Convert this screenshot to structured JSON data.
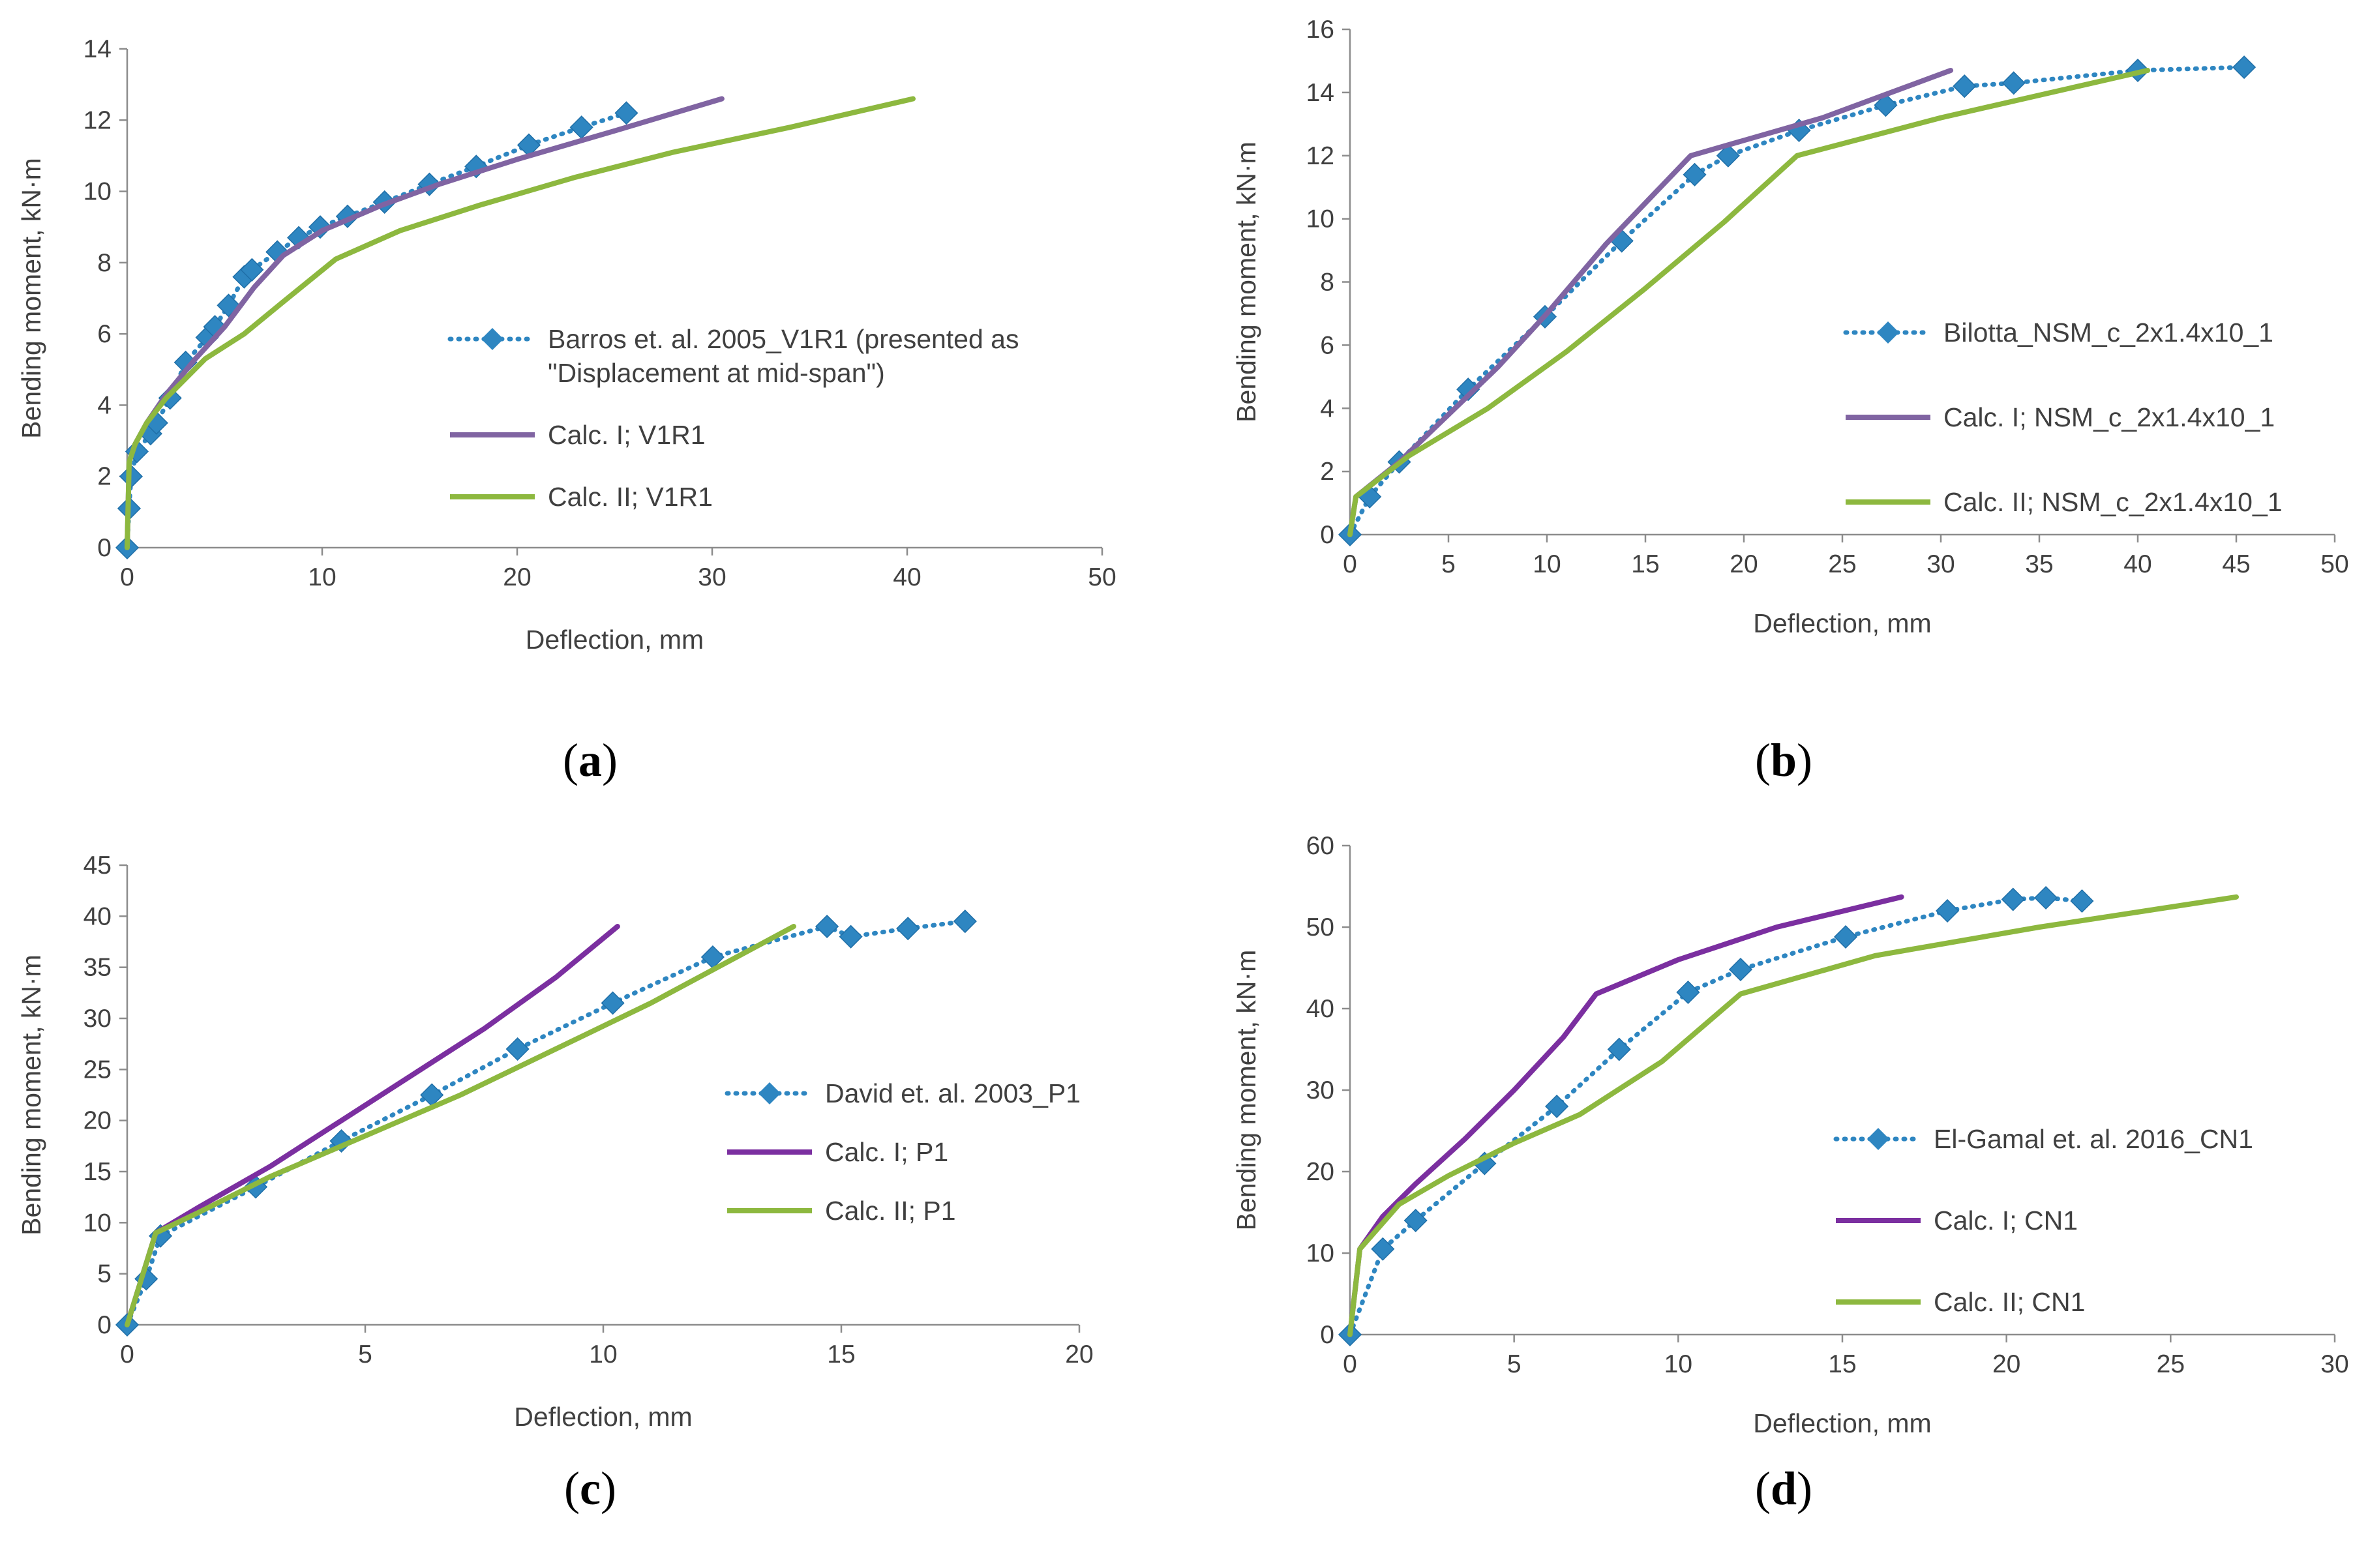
{
  "chart_data": [
    {
      "type": "line",
      "panel_label": "(a)",
      "label_letter": "a",
      "xlabel": "Deflection, mm",
      "ylabel": "Bending moment, kN·m",
      "xlim": [
        0,
        50
      ],
      "ylim": [
        0,
        14
      ],
      "xticks": [
        0,
        10,
        20,
        30,
        40,
        50
      ],
      "yticks": [
        0,
        2,
        4,
        6,
        8,
        10,
        12,
        14
      ],
      "legend_position": "center-right",
      "series": [
        {
          "name": "Barros et. al. 2005_V1R1 (presented as \"Displacement at mid-span\")",
          "legend_lines": [
            "Barros et. al. 2005_V1R1 (presented as",
            "\"Displacement at mid-span\")"
          ],
          "style": "dotted-diamond",
          "color": "#2E86C1",
          "x": [
            0,
            0.1,
            0.2,
            0.5,
            1.2,
            1.5,
            2.2,
            3.0,
            4.1,
            4.5,
            5.2,
            6.0,
            6.4,
            7.7,
            8.8,
            9.9,
            11.3,
            13.2,
            15.5,
            17.9,
            20.6,
            23.3,
            25.6
          ],
          "y": [
            0,
            1.1,
            2.0,
            2.7,
            3.2,
            3.5,
            4.2,
            5.2,
            5.9,
            6.2,
            6.8,
            7.6,
            7.8,
            8.3,
            8.7,
            9.0,
            9.3,
            9.7,
            10.2,
            10.7,
            11.3,
            11.8,
            12.2
          ]
        },
        {
          "name": "Calc. I; V1R1",
          "style": "solid",
          "color": "#8064A2",
          "x": [
            0,
            0.1,
            0.4,
            1.0,
            2.0,
            3.5,
            5.0,
            6.5,
            8.0,
            10.0,
            13.0,
            16.0,
            20.0,
            25.0,
            30.5
          ],
          "y": [
            0,
            2.4,
            2.9,
            3.5,
            4.3,
            5.3,
            6.2,
            7.3,
            8.2,
            8.9,
            9.6,
            10.2,
            10.9,
            11.7,
            12.6
          ]
        },
        {
          "name": "Calc. II; V1R1",
          "style": "solid",
          "color": "#8DB83F",
          "x": [
            0,
            0.1,
            0.4,
            1.0,
            2.0,
            4.0,
            6.0,
            8.0,
            10.7,
            14.0,
            18.0,
            23.0,
            28.0,
            34.0,
            40.3
          ],
          "y": [
            0,
            2.4,
            2.9,
            3.5,
            4.2,
            5.3,
            6.0,
            6.9,
            8.1,
            8.9,
            9.6,
            10.4,
            11.1,
            11.8,
            12.6
          ]
        }
      ]
    },
    {
      "type": "line",
      "panel_label": "(b)",
      "label_letter": "b",
      "xlabel": "Deflection, mm",
      "ylabel": "Bending moment, kN·m",
      "xlim": [
        0,
        50
      ],
      "ylim": [
        0,
        16
      ],
      "xticks": [
        0,
        5,
        10,
        15,
        20,
        25,
        30,
        35,
        40,
        45,
        50
      ],
      "yticks": [
        0,
        2,
        4,
        6,
        8,
        10,
        12,
        14,
        16
      ],
      "legend_position": "center-right",
      "series": [
        {
          "name": "Bilotta_NSM_c_2x1.4x10_1",
          "legend_lines": [
            "Bilotta_NSM_c_2x1.4x10_1"
          ],
          "style": "dotted-diamond",
          "color": "#2E86C1",
          "x": [
            0,
            1.0,
            2.5,
            6.0,
            9.9,
            13.8,
            17.5,
            19.2,
            22.8,
            27.2,
            31.2,
            33.7,
            40.0,
            45.4
          ],
          "y": [
            0,
            1.2,
            2.3,
            4.6,
            6.9,
            9.3,
            11.4,
            12.0,
            12.8,
            13.6,
            14.2,
            14.3,
            14.7,
            14.8
          ]
        },
        {
          "name": "Calc. I; NSM_c_2x1.4x10_1",
          "legend_lines": [
            "Calc. I; NSM_c_2x1.4x10_1"
          ],
          "style": "solid",
          "color": "#8064A2",
          "x": [
            0,
            0.3,
            2.5,
            5.0,
            7.5,
            10.0,
            13.0,
            17.3,
            24.0,
            30.5
          ],
          "y": [
            0,
            1.2,
            2.3,
            3.8,
            5.3,
            7.0,
            9.2,
            12.0,
            13.2,
            14.7
          ]
        },
        {
          "name": "Calc. II; NSM_c_2x1.4x10_1",
          "legend_lines": [
            "Calc. II; NSM_c_2x1.4x10_1"
          ],
          "style": "solid",
          "color": "#8DB83F",
          "x": [
            0,
            0.3,
            3.0,
            7.0,
            11.0,
            15.0,
            19.0,
            22.7,
            30.0,
            40.5
          ],
          "y": [
            0,
            1.2,
            2.5,
            4.0,
            5.8,
            7.8,
            9.9,
            12.0,
            13.2,
            14.7
          ]
        }
      ]
    },
    {
      "type": "line",
      "panel_label": "(c)",
      "label_letter": "c",
      "xlabel": "Deflection, mm",
      "ylabel": "Bending moment, kN·m",
      "xlim": [
        0,
        20
      ],
      "ylim": [
        0,
        45
      ],
      "xticks": [
        0,
        5,
        10,
        15,
        20
      ],
      "yticks": [
        0,
        5,
        10,
        15,
        20,
        25,
        30,
        35,
        40,
        45
      ],
      "legend_position": "center-right",
      "series": [
        {
          "name": "David et. al. 2003_P1",
          "legend_lines": [
            "David et. al. 2003_P1"
          ],
          "style": "dotted-diamond",
          "color": "#2E86C1",
          "x": [
            0,
            0.4,
            0.7,
            2.7,
            4.5,
            6.4,
            8.2,
            10.2,
            12.3,
            14.7,
            15.2,
            16.4,
            17.6
          ],
          "y": [
            0,
            4.5,
            8.7,
            13.5,
            18.0,
            22.5,
            27.0,
            31.5,
            36.0,
            39.0,
            38.0,
            38.8,
            39.5
          ]
        },
        {
          "name": "Calc. I; P1",
          "legend_lines": [
            "Calc. I; P1"
          ],
          "style": "solid",
          "color": "#7B2FA0",
          "x": [
            0,
            0.6,
            1.5,
            3.0,
            4.5,
            6.0,
            7.5,
            9.0,
            10.3
          ],
          "y": [
            0,
            9.0,
            11.5,
            15.5,
            20.0,
            24.5,
            29.0,
            34.0,
            39.0
          ]
        },
        {
          "name": "Calc. II; P1",
          "legend_lines": [
            "Calc. II; P1"
          ],
          "style": "solid",
          "color": "#8DB83F",
          "x": [
            0,
            0.6,
            1.5,
            3.0,
            5.0,
            7.0,
            9.0,
            11.0,
            13.0,
            14.0
          ],
          "y": [
            0,
            9.0,
            11.0,
            14.5,
            18.5,
            22.5,
            27.0,
            31.5,
            36.5,
            39.0
          ]
        }
      ]
    },
    {
      "type": "line",
      "panel_label": "(d)",
      "label_letter": "d",
      "xlabel": "Deflection, mm",
      "ylabel": "Bending moment, kN·m",
      "xlim": [
        0,
        30
      ],
      "ylim": [
        0,
        60
      ],
      "xticks": [
        0,
        5,
        10,
        15,
        20,
        25,
        30
      ],
      "yticks": [
        0,
        10,
        20,
        30,
        40,
        50,
        60
      ],
      "legend_position": "center-right",
      "series": [
        {
          "name": "El-Gamal et. al. 2016_CN1",
          "legend_lines": [
            "El-Gamal et. al. 2016_CN1"
          ],
          "style": "dotted-diamond",
          "color": "#2E86C1",
          "x": [
            0,
            1.0,
            2.0,
            4.1,
            6.3,
            8.2,
            10.3,
            11.9,
            15.1,
            18.2,
            20.2,
            21.2,
            22.3
          ],
          "y": [
            0,
            10.5,
            14.0,
            21.0,
            28.0,
            35.0,
            42.0,
            44.8,
            48.8,
            52.0,
            53.4,
            53.6,
            53.2
          ]
        },
        {
          "name": "Calc. I; CN1",
          "legend_lines": [
            "Calc. I; CN1"
          ],
          "style": "solid",
          "color": "#7B2FA0",
          "x": [
            0,
            0.3,
            1.0,
            2.0,
            3.5,
            5.0,
            6.5,
            7.5,
            10.0,
            13.0,
            16.8
          ],
          "y": [
            0,
            10.5,
            14.5,
            18.5,
            24.0,
            30.0,
            36.5,
            41.8,
            46.0,
            50.0,
            53.7
          ]
        },
        {
          "name": "Calc. II; CN1",
          "legend_lines": [
            "Calc. II; CN1"
          ],
          "style": "solid",
          "color": "#8DB83F",
          "x": [
            0,
            0.3,
            1.5,
            3.0,
            5.0,
            7.0,
            9.5,
            11.9,
            16.0,
            21.0,
            27.0
          ],
          "y": [
            0,
            10.5,
            16.0,
            19.5,
            23.5,
            27.0,
            33.5,
            41.8,
            46.5,
            50.0,
            53.7
          ]
        }
      ]
    }
  ]
}
